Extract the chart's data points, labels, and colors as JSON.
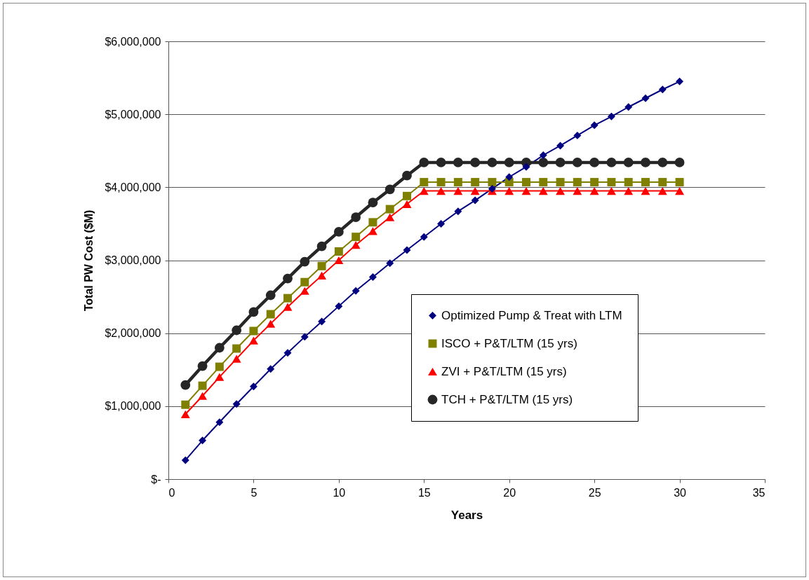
{
  "chart_data": {
    "type": "line",
    "x": [
      1,
      2,
      3,
      4,
      5,
      6,
      7,
      8,
      9,
      10,
      11,
      12,
      13,
      14,
      15,
      16,
      17,
      18,
      19,
      20,
      21,
      22,
      23,
      24,
      25,
      26,
      27,
      28,
      29,
      30
    ],
    "series": [
      {
        "name": "Optimized Pump & Treat with LTM",
        "color": "#000080",
        "marker": "diamond",
        "values": [
          260000,
          530000,
          780000,
          1030000,
          1270000,
          1510000,
          1730000,
          1950000,
          2160000,
          2370000,
          2580000,
          2770000,
          2960000,
          3140000,
          3320000,
          3500000,
          3670000,
          3820000,
          3980000,
          4140000,
          4280000,
          4440000,
          4570000,
          4710000,
          4850000,
          4970000,
          5100000,
          5220000,
          5340000,
          5450000
        ]
      },
      {
        "name": "ISCO + P&T/LTM (15 yrs)",
        "color": "#808000",
        "marker": "square",
        "values": [
          1020000,
          1280000,
          1540000,
          1790000,
          2030000,
          2260000,
          2480000,
          2700000,
          2920000,
          3120000,
          3320000,
          3520000,
          3700000,
          3880000,
          4070000,
          4070000,
          4070000,
          4070000,
          4070000,
          4070000,
          4070000,
          4070000,
          4070000,
          4070000,
          4070000,
          4070000,
          4070000,
          4070000,
          4070000,
          4070000
        ]
      },
      {
        "name": "ZVI + P&T/LTM (15 yrs)",
        "color": "#ff0000",
        "marker": "triangle",
        "values": [
          890000,
          1140000,
          1400000,
          1650000,
          1900000,
          2130000,
          2360000,
          2580000,
          2790000,
          3000000,
          3210000,
          3400000,
          3590000,
          3770000,
          3950000,
          3950000,
          3950000,
          3950000,
          3950000,
          3950000,
          3950000,
          3950000,
          3950000,
          3950000,
          3950000,
          3950000,
          3950000,
          3950000,
          3950000,
          3950000
        ]
      },
      {
        "name": "TCH + P&T/LTM (15 yrs)",
        "color": "#262626",
        "marker": "circle",
        "values": [
          1290000,
          1550000,
          1800000,
          2040000,
          2290000,
          2520000,
          2750000,
          2980000,
          3190000,
          3390000,
          3590000,
          3790000,
          3970000,
          4160000,
          4340000,
          4340000,
          4340000,
          4340000,
          4340000,
          4340000,
          4340000,
          4340000,
          4340000,
          4340000,
          4340000,
          4340000,
          4340000,
          4340000,
          4340000,
          4340000
        ]
      }
    ],
    "xlabel": "Years",
    "ylabel": "Total PW Cost ($M)",
    "xlim": [
      0,
      35
    ],
    "xticks": [
      0,
      5,
      10,
      15,
      20,
      25,
      30,
      35
    ],
    "ylim": [
      0,
      6000000
    ],
    "yticks": [
      {
        "value": 0,
        "label": "$-"
      },
      {
        "value": 1000000,
        "label": "$1,000,000"
      },
      {
        "value": 2000000,
        "label": "$2,000,000"
      },
      {
        "value": 3000000,
        "label": "$3,000,000"
      },
      {
        "value": 4000000,
        "label": "$4,000,000"
      },
      {
        "value": 5000000,
        "label": "$5,000,000"
      },
      {
        "value": 6000000,
        "label": "$6,000,000"
      }
    ],
    "grid": "y",
    "legend": "bottom right"
  }
}
